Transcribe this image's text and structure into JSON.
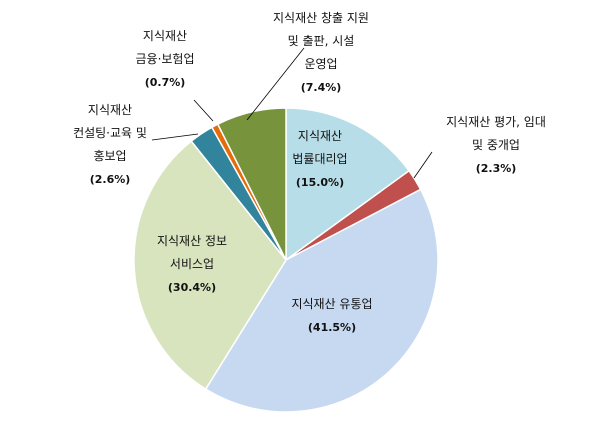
{
  "chart_data": {
    "type": "pie",
    "title": "",
    "slices": [
      {
        "name": "지식재산 법률대리업",
        "value": 15.0,
        "pct": "(15.0%)",
        "color": "#b7dde8",
        "lines": [
          "지식재산",
          "법률대리업"
        ]
      },
      {
        "name": "지식재산 평가, 임대 및 중개업",
        "value": 2.3,
        "pct": "(2.3%)",
        "color": "#c0504d",
        "lines": [
          "지식재산 평가, 임대",
          "및 중개업"
        ]
      },
      {
        "name": "지식재산 유통업",
        "value": 41.5,
        "pct": "(41.5%)",
        "color": "#c6d9f1",
        "lines": [
          "지식재산 유통업"
        ]
      },
      {
        "name": "지식재산 정보 서비스업",
        "value": 30.4,
        "pct": "(30.4%)",
        "color": "#d7e4bd",
        "lines": [
          "지식재산 정보",
          "서비스업"
        ]
      },
      {
        "name": "지식재산 컨설팅·교육 및 홍보업",
        "value": 2.6,
        "pct": "(2.6%)",
        "color": "#31849b",
        "lines": [
          "지식재산",
          "컨설팅·교육 및",
          "홍보업"
        ]
      },
      {
        "name": "지식재산 금융·보험업",
        "value": 0.7,
        "pct": "(0.7%)",
        "color": "#e46c0a",
        "lines": [
          "지식재산",
          "금융·보험업"
        ]
      },
      {
        "name": "지식재산 창출 지원 및 출판, 시설 운영업",
        "value": 7.4,
        "pct": "(7.4%)",
        "color": "#77933c",
        "lines": [
          "지식재산 창출 지원",
          "및 출판, 시설",
          "운영업"
        ]
      }
    ],
    "start": "12 o'clock",
    "direction": "clockwise"
  }
}
